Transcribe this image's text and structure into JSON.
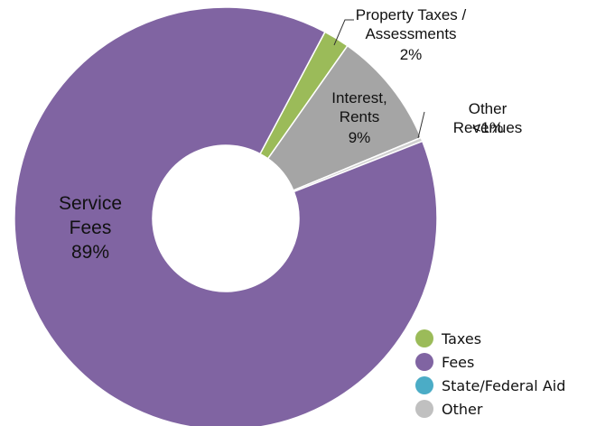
{
  "chart_data": {
    "type": "donut",
    "categories": [
      "Service\nFees",
      "Property Taxes /\nAssessments",
      "Interest,\nRents",
      "Other Revenues"
    ],
    "values": [
      89,
      2,
      9,
      0.3
    ],
    "value_labels": [
      "89%",
      "2%",
      "9%",
      "<1%"
    ],
    "colors": [
      "#8064a2",
      "#9bbb59",
      "#a5a5a5",
      "#d0d0d0"
    ],
    "legend": [
      {
        "name": "Taxes",
        "color": "#9bbb59"
      },
      {
        "name": "Fees",
        "color": "#8064a2"
      },
      {
        "name": "State/Federal Aid",
        "color": "#4bacc6"
      },
      {
        "name": "Other",
        "color": "#c0c0c0"
      }
    ]
  }
}
